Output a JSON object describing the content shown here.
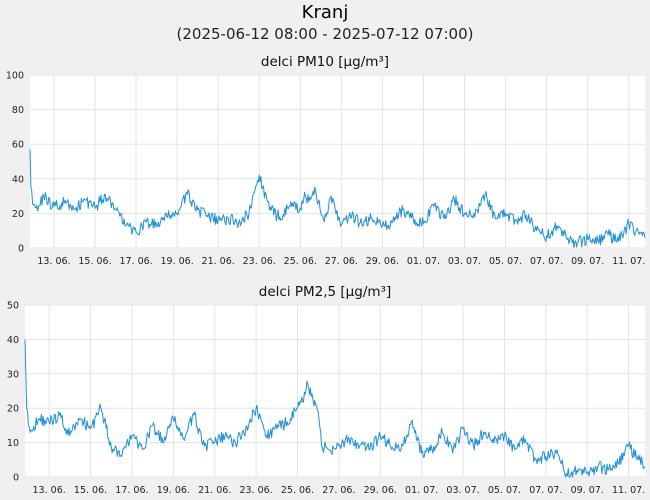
{
  "page": {
    "title": "Kranj",
    "subtitle": "(2025-06-12 08:00 - 2025-07-12 07:00)"
  },
  "colors": {
    "line": "#1f8fd6",
    "grid": "#e3e3e3",
    "panel": "#ffffff",
    "background": "#f0f0f0"
  },
  "chart_data": [
    {
      "type": "line",
      "title": "delci PM10 [µg/m³]",
      "xlabel": "",
      "ylabel": "",
      "ylim": [
        0,
        100
      ],
      "yticks": [
        0,
        20,
        40,
        60,
        80,
        100
      ],
      "x_range": [
        "2025-06-12 08:00",
        "2025-07-12 07:00"
      ],
      "x_ticks": [
        "13. 06.",
        "15. 06.",
        "17. 06.",
        "19. 06.",
        "21. 06.",
        "23. 06.",
        "25. 06.",
        "27. 06.",
        "29. 06.",
        "01. 07.",
        "03. 07.",
        "05. 07.",
        "07. 07.",
        "09. 07.",
        "11. 07."
      ],
      "grid": true,
      "series": [
        {
          "x": [
            "2025-06-12 08:00",
            "2025-06-12 09:00",
            "2025-06-12 12:00",
            "2025-06-12 18:00",
            "2025-06-13 00:00",
            "2025-06-13 12:00",
            "2025-06-14 00:00",
            "2025-06-14 12:00",
            "2025-06-15 00:00",
            "2025-06-15 12:00",
            "2025-06-16 00:00",
            "2025-06-16 12:00",
            "2025-06-17 00:00",
            "2025-06-17 12:00",
            "2025-06-18 00:00",
            "2025-06-18 12:00",
            "2025-06-19 00:00",
            "2025-06-19 12:00",
            "2025-06-20 00:00",
            "2025-06-20 12:00",
            "2025-06-21 00:00",
            "2025-06-21 12:00",
            "2025-06-22 00:00",
            "2025-06-22 12:00",
            "2025-06-23 00:00",
            "2025-06-23 12:00",
            "2025-06-24 00:00",
            "2025-06-24 12:00",
            "2025-06-25 00:00",
            "2025-06-25 12:00",
            "2025-06-25 18:00",
            "2025-06-26 00:00",
            "2025-06-26 06:00",
            "2025-06-26 12:00",
            "2025-06-26 18:00",
            "2025-06-27 00:00",
            "2025-06-27 12:00",
            "2025-06-28 00:00",
            "2025-06-28 12:00",
            "2025-06-29 00:00",
            "2025-06-29 12:00",
            "2025-06-30 00:00",
            "2025-06-30 12:00",
            "2025-07-01 00:00",
            "2025-07-01 12:00",
            "2025-07-02 00:00",
            "2025-07-02 12:00",
            "2025-07-03 00:00",
            "2025-07-03 12:00",
            "2025-07-04 00:00",
            "2025-07-04 12:00",
            "2025-07-05 00:00",
            "2025-07-05 12:00",
            "2025-07-06 00:00",
            "2025-07-06 12:00",
            "2025-07-07 00:00",
            "2025-07-07 12:00",
            "2025-07-08 00:00",
            "2025-07-08 12:00",
            "2025-07-09 00:00",
            "2025-07-09 12:00",
            "2025-07-10 00:00",
            "2025-07-10 12:00",
            "2025-07-11 00:00",
            "2025-07-11 12:00",
            "2025-07-12 00:00",
            "2025-07-12 07:00"
          ],
          "y": [
            57,
            35,
            25,
            24,
            30,
            24,
            26,
            22,
            28,
            23,
            31,
            22,
            13,
            9,
            15,
            13,
            18,
            20,
            31,
            22,
            18,
            16,
            17,
            15,
            20,
            42,
            22,
            18,
            24,
            23,
            30,
            28,
            33,
            20,
            18,
            30,
            13,
            18,
            14,
            17,
            13,
            15,
            22,
            17,
            14,
            24,
            17,
            28,
            20,
            18,
            31,
            17,
            20,
            16,
            19,
            10,
            7,
            13,
            5,
            3,
            5,
            4,
            8,
            4,
            14,
            8,
            6
          ]
        }
      ]
    },
    {
      "type": "line",
      "title": "delci PM2,5 [µg/m³]",
      "xlabel": "",
      "ylabel": "",
      "ylim": [
        0,
        50
      ],
      "yticks": [
        0,
        10,
        20,
        30,
        40,
        50
      ],
      "x_range": [
        "2025-06-12 08:00",
        "2025-07-12 07:00"
      ],
      "x_ticks": [
        "13. 06.",
        "15. 06.",
        "17. 06.",
        "19. 06.",
        "21. 06.",
        "23. 06.",
        "25. 06.",
        "27. 06.",
        "29. 06.",
        "01. 07.",
        "03. 07.",
        "05. 07.",
        "07. 07.",
        "09. 07.",
        "11. 07."
      ],
      "grid": true,
      "series": [
        {
          "x": [
            "2025-06-12 08:00",
            "2025-06-12 10:00",
            "2025-06-12 14:00",
            "2025-06-13 00:00",
            "2025-06-13 12:00",
            "2025-06-14 00:00",
            "2025-06-14 12:00",
            "2025-06-15 00:00",
            "2025-06-15 12:00",
            "2025-06-16 00:00",
            "2025-06-16 12:00",
            "2025-06-17 00:00",
            "2025-06-17 12:00",
            "2025-06-18 00:00",
            "2025-06-18 12:00",
            "2025-06-19 00:00",
            "2025-06-19 12:00",
            "2025-06-20 00:00",
            "2025-06-20 12:00",
            "2025-06-21 00:00",
            "2025-06-21 12:00",
            "2025-06-22 00:00",
            "2025-06-22 12:00",
            "2025-06-23 00:00",
            "2025-06-23 12:00",
            "2025-06-24 00:00",
            "2025-06-24 12:00",
            "2025-06-25 00:00",
            "2025-06-25 12:00",
            "2025-06-25 18:00",
            "2025-06-26 00:00",
            "2025-06-26 12:00",
            "2025-06-26 16:00",
            "2025-06-27 00:00",
            "2025-06-27 12:00",
            "2025-06-28 00:00",
            "2025-06-28 12:00",
            "2025-06-29 00:00",
            "2025-06-29 12:00",
            "2025-06-30 00:00",
            "2025-06-30 12:00",
            "2025-07-01 00:00",
            "2025-07-01 12:00",
            "2025-07-02 00:00",
            "2025-07-02 12:00",
            "2025-07-03 00:00",
            "2025-07-03 12:00",
            "2025-07-04 00:00",
            "2025-07-04 12:00",
            "2025-07-05 00:00",
            "2025-07-05 12:00",
            "2025-07-06 00:00",
            "2025-07-06 12:00",
            "2025-07-07 00:00",
            "2025-07-07 12:00",
            "2025-07-08 00:00",
            "2025-07-08 12:00",
            "2025-07-09 00:00",
            "2025-07-09 12:00",
            "2025-07-10 00:00",
            "2025-07-10 12:00",
            "2025-07-11 00:00",
            "2025-07-11 12:00",
            "2025-07-12 00:00",
            "2025-07-12 07:00"
          ],
          "y": [
            40,
            20,
            13,
            17,
            16,
            18,
            12,
            17,
            14,
            20,
            9,
            6,
            12,
            8,
            15,
            10,
            17,
            11,
            18,
            9,
            10,
            12,
            10,
            14,
            20,
            12,
            14,
            16,
            20,
            22,
            27,
            19,
            9,
            8,
            9,
            11,
            9,
            8,
            12,
            9,
            8,
            16,
            7,
            8,
            13,
            7,
            14,
            9,
            13,
            10,
            12,
            8,
            11,
            5,
            6,
            7,
            1,
            2,
            1,
            3,
            2,
            4,
            9,
            5,
            3
          ]
        }
      ]
    }
  ]
}
